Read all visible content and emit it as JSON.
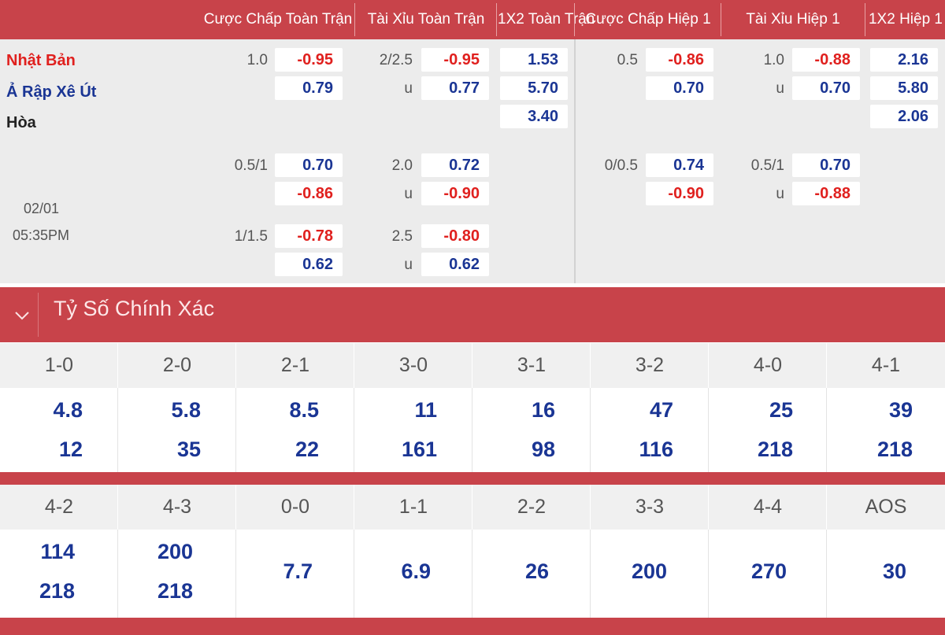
{
  "columns": [
    "Cược Chấp Toàn Trận",
    "Tài Xỉu Toàn Trận",
    "1X2 Toàn Trận",
    "Cược Chấp Hiệp 1",
    "Tài Xỉu Hiệp 1",
    "1X2 Hiệp 1"
  ],
  "teams": {
    "home": "Nhật Bản",
    "away": "Ả Rập Xê Út",
    "draw": "Hòa"
  },
  "match": {
    "date": "02/01",
    "time": "05:35PM"
  },
  "ft_handicap": [
    {
      "line": "1.0",
      "home": "-0.95",
      "away": "0.79"
    },
    {
      "line": "0.5/1",
      "home": "0.70",
      "away": "-0.86"
    },
    {
      "line": "1/1.5",
      "home": "-0.78",
      "away": "0.62"
    }
  ],
  "ft_overunder": [
    {
      "line": "2/2.5",
      "over": "-0.95",
      "u_label": "u",
      "under": "0.77"
    },
    {
      "line": "2.0",
      "over": "0.72",
      "u_label": "u",
      "under": "-0.90"
    },
    {
      "line": "2.5",
      "over": "-0.80",
      "u_label": "u",
      "under": "0.62"
    }
  ],
  "ft_1x2": {
    "home": "1.53",
    "away": "5.70",
    "draw": "3.40"
  },
  "h1_handicap": [
    {
      "line": "0.5",
      "home": "-0.86",
      "away": "0.70"
    },
    {
      "line": "0/0.5",
      "home": "0.74",
      "away": "-0.90"
    }
  ],
  "h1_overunder": [
    {
      "line": "1.0",
      "over": "-0.88",
      "u_label": "u",
      "under": "0.70"
    },
    {
      "line": "0.5/1",
      "over": "0.70",
      "u_label": "u",
      "under": "-0.88"
    }
  ],
  "h1_1x2": {
    "home": "2.16",
    "away": "5.80",
    "draw": "2.06"
  },
  "correct_score": {
    "title": "Tỷ Số Chính Xác",
    "row1": [
      {
        "score": "1-0",
        "home": "4.8",
        "away": "12"
      },
      {
        "score": "2-0",
        "home": "5.8",
        "away": "35"
      },
      {
        "score": "2-1",
        "home": "8.5",
        "away": "22"
      },
      {
        "score": "3-0",
        "home": "11",
        "away": "161"
      },
      {
        "score": "3-1",
        "home": "16",
        "away": "98"
      },
      {
        "score": "3-2",
        "home": "47",
        "away": "116"
      },
      {
        "score": "4-0",
        "home": "25",
        "away": "218"
      },
      {
        "score": "4-1",
        "home": "39",
        "away": "218"
      }
    ],
    "row2": [
      {
        "score": "4-2",
        "home": "114",
        "away": "218"
      },
      {
        "score": "4-3",
        "home": "200",
        "away": "218"
      },
      {
        "score": "0-0",
        "draw": "7.7"
      },
      {
        "score": "1-1",
        "draw": "6.9"
      },
      {
        "score": "2-2",
        "draw": "26"
      },
      {
        "score": "3-3",
        "draw": "200"
      },
      {
        "score": "4-4",
        "draw": "270"
      },
      {
        "score": "AOS",
        "draw": "30"
      }
    ]
  }
}
